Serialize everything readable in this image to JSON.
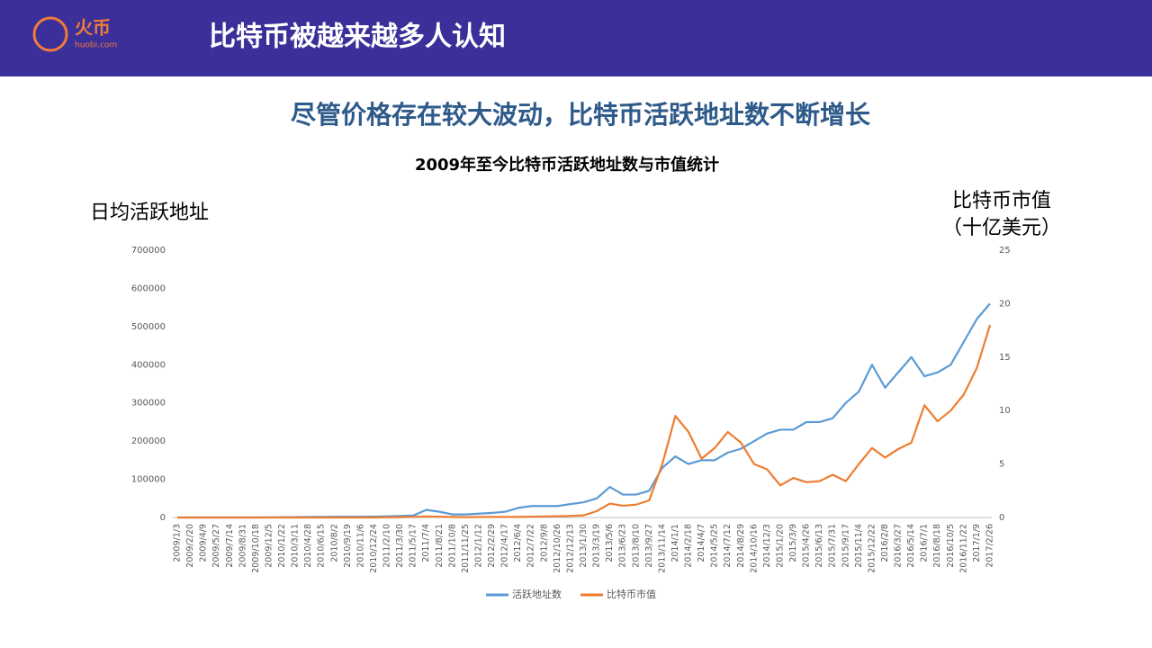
{
  "header": {
    "logo_text": "火币",
    "logo_url": "huobi.com",
    "title": "比特币被越来越多人认知"
  },
  "subtitle": "尽管价格存在较大波动，比特币活跃地址数不断增长",
  "chart_data": {
    "type": "line",
    "title": "2009年至今比特币活跃地址数与市值统计",
    "ylabel": "日均活跃地址",
    "y2label": [
      "比特币市值",
      "（十亿美元）"
    ],
    "categories": [
      "2009/1/3",
      "2009/2/20",
      "2009/4/9",
      "2009/5/27",
      "2009/7/14",
      "2009/8/31",
      "2009/10/18",
      "2009/12/5",
      "2010/1/22",
      "2010/3/11",
      "2010/4/28",
      "2010/6/15",
      "2010/8/2",
      "2010/9/19",
      "2010/11/6",
      "2010/12/24",
      "2011/2/10",
      "2011/3/30",
      "2011/5/17",
      "2011/7/4",
      "2011/8/21",
      "2011/10/8",
      "2011/11/25",
      "2012/1/12",
      "2012/2/29",
      "2012/4/17",
      "2012/6/4",
      "2012/7/22",
      "2012/9/8",
      "2012/10/26",
      "2012/12/13",
      "2013/1/30",
      "2013/3/19",
      "2013/5/6",
      "2013/6/23",
      "2013/8/10",
      "2013/9/27",
      "2013/11/14",
      "2014/1/1",
      "2014/2/18",
      "2014/4/7",
      "2014/5/25",
      "2014/7/12",
      "2014/8/29",
      "2014/10/16",
      "2014/12/3",
      "2015/1/20",
      "2015/3/9",
      "2015/4/26",
      "2015/6/13",
      "2015/7/31",
      "2015/9/17",
      "2015/11/4",
      "2015/12/22",
      "2016/2/8",
      "2016/3/27",
      "2016/5/14",
      "2016/7/1",
      "2016/8/18",
      "2016/10/5",
      "2016/11/22",
      "2017/1/9",
      "2017/2/26"
    ],
    "series": [
      {
        "name": "活跃地址数",
        "color": "#5b9bd5",
        "values": [
          0,
          0,
          0,
          0,
          0,
          0,
          0,
          500,
          1000,
          1000,
          1500,
          1500,
          2000,
          2000,
          2000,
          2500,
          3000,
          4000,
          5000,
          20000,
          15000,
          8000,
          8000,
          10000,
          12000,
          15000,
          25000,
          30000,
          30000,
          30000,
          35000,
          40000,
          50000,
          80000,
          60000,
          60000,
          70000,
          130000,
          160000,
          140000,
          150000,
          150000,
          170000,
          180000,
          200000,
          220000,
          230000,
          230000,
          250000,
          250000,
          260000,
          300000,
          330000,
          400000,
          340000,
          380000,
          420000,
          370000,
          380000,
          400000,
          460000,
          520000,
          560000
        ]
      },
      {
        "name": "比特币市值",
        "color": "#ed7d31",
        "axis": "y2",
        "values": [
          0,
          0,
          0,
          0,
          0,
          0,
          0,
          0,
          0,
          0,
          0,
          0,
          0,
          0,
          0,
          0,
          0.02,
          0.03,
          0.06,
          0.1,
          0.08,
          0.05,
          0.03,
          0.05,
          0.05,
          0.05,
          0.05,
          0.08,
          0.1,
          0.12,
          0.15,
          0.2,
          0.6,
          1.3,
          1.1,
          1.2,
          1.6,
          5,
          9.5,
          8,
          5.5,
          6.5,
          8,
          7,
          5,
          4.5,
          3,
          3.7,
          3.3,
          3.4,
          4,
          3.4,
          5,
          6.5,
          5.6,
          6.4,
          7,
          10.5,
          9,
          10,
          11.5,
          14,
          18
        ]
      }
    ],
    "ylim": [
      0,
      700000
    ],
    "yticks": [
      0,
      100000,
      200000,
      300000,
      400000,
      500000,
      600000,
      700000
    ],
    "y2lim": [
      0,
      25
    ],
    "y2ticks": [
      0,
      5,
      10,
      15,
      20,
      25
    ],
    "grid": false,
    "legend": "bottom"
  }
}
